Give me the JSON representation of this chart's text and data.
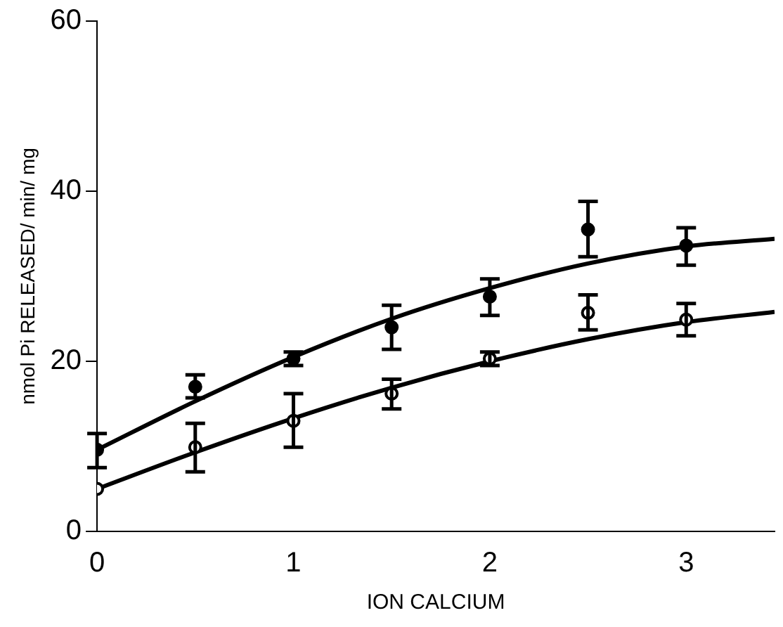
{
  "chart_data": {
    "type": "scatter",
    "xlabel": "ION CALCIUM",
    "ylabel": "nmol Pi RELEASED/ min/ mg",
    "xlim": [
      0,
      3.45
    ],
    "ylim": [
      0,
      60
    ],
    "xticks": [
      0,
      1,
      2,
      3
    ],
    "yticks": [
      0,
      20,
      40,
      60
    ],
    "grid": false,
    "legend": false,
    "marker": "circle",
    "series": [
      {
        "color": "#000000",
        "x": [
          0,
          0.5,
          1,
          1.5,
          2,
          2.5,
          3
        ],
        "values": [
          9.6,
          17,
          20.3,
          24,
          27.6,
          35.5,
          33.6
        ],
        "errors": [
          [
            7.5,
            11.5
          ],
          [
            15.7,
            18.4
          ],
          [
            19.5,
            21.1
          ],
          [
            21.4,
            26.6
          ],
          [
            25.4,
            29.7
          ],
          [
            32.3,
            38.8
          ],
          [
            31.3,
            35.7
          ]
        ]
      },
      {
        "color": "#000000",
        "x": [
          0,
          0.5,
          1,
          1.5,
          2,
          2.5,
          3
        ],
        "values": [
          5,
          9.9,
          13,
          16.2,
          20.3,
          25.7,
          24.9
        ],
        "errors": [
          null,
          [
            7,
            12.7
          ],
          [
            9.9,
            16.2
          ],
          [
            14.4,
            17.9
          ],
          [
            19.5,
            21.1
          ],
          [
            23.7,
            27.8
          ],
          [
            23,
            26.8
          ]
        ]
      },
      {
        "type": "line",
        "color": "#000000",
        "marker": "none",
        "x": [
          0,
          0.5,
          1,
          1.5,
          2,
          2.5,
          3,
          3.45
        ],
        "values": [
          9.6,
          15.3,
          20.5,
          25,
          28.6,
          31.5,
          33.5,
          34.4
        ]
      },
      {
        "type": "line",
        "color": "#000000",
        "marker": "none",
        "x": [
          0,
          0.5,
          1,
          1.5,
          2,
          2.5,
          3,
          3.45
        ],
        "values": [
          5,
          9.3,
          13.3,
          16.9,
          20,
          22.6,
          24.6,
          25.8
        ]
      }
    ]
  }
}
